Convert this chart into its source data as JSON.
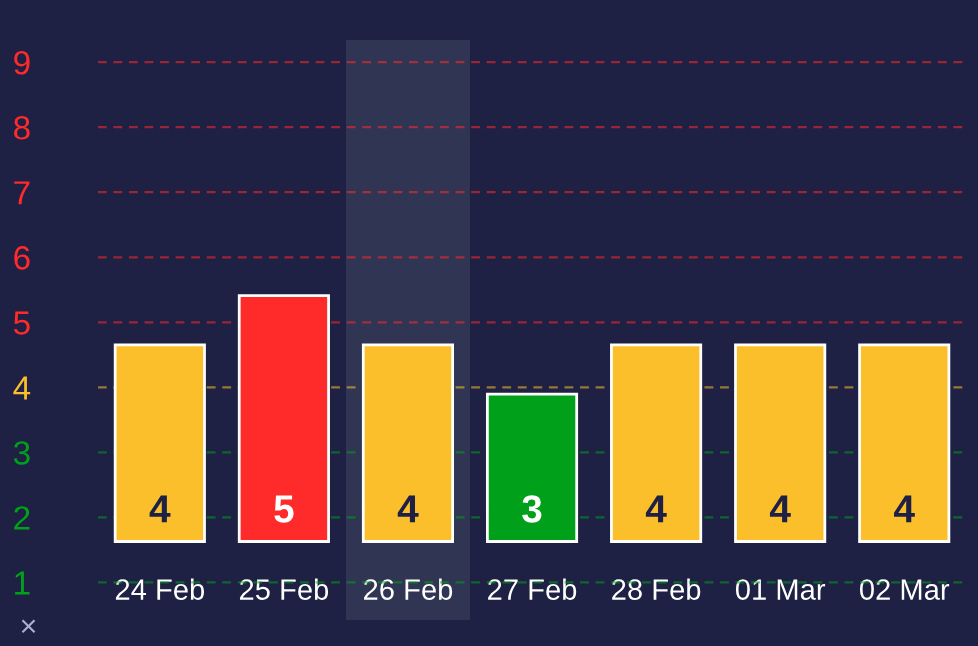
{
  "chart_data": {
    "type": "bar",
    "categories": [
      "24 Feb",
      "25 Feb",
      "26 Feb",
      "27 Feb",
      "28 Feb",
      "01 Mar",
      "02 Mar"
    ],
    "series": [
      {
        "axis": "y2",
        "values": [
          4,
          5,
          4,
          3,
          4,
          4,
          4
        ],
        "colors": [
          "#fbbf2c",
          "#ff2a2a",
          "#fbbf2c",
          "#00a01a",
          "#fbbf2c",
          "#fbbf2c",
          "#fbbf2c"
        ]
      }
    ],
    "data_labels": true,
    "ylim": [
      0.42,
      9.34
    ],
    "yticks": [
      1,
      2,
      3,
      4,
      5,
      6,
      7,
      8,
      9
    ],
    "y2lim": [
      -1.6,
      10.2
    ],
    "tick_labels": "xy",
    "ref_lines": [
      {
        "axis": "y",
        "value": 1,
        "color": "#00a01a",
        "line_style": "dashed"
      },
      {
        "axis": "y",
        "value": 2,
        "color": "#00a01a",
        "line_style": "dashed"
      },
      {
        "axis": "y",
        "value": 3,
        "color": "#00a01a",
        "line_style": "dashed"
      },
      {
        "axis": "y",
        "value": 4,
        "color": "#fbbf2c",
        "line_style": "dashed"
      },
      {
        "axis": "y",
        "value": 5,
        "color": "#ff2a2a",
        "line_style": "dashed"
      },
      {
        "axis": "y",
        "value": 6,
        "color": "#ff2a2a",
        "line_style": "dashed"
      },
      {
        "axis": "y",
        "value": 7,
        "color": "#ff2a2a",
        "line_style": "dashed"
      },
      {
        "axis": "y",
        "value": 8,
        "color": "#ff2a2a",
        "line_style": "dashed"
      },
      {
        "axis": "y",
        "value": 9,
        "color": "#ff2a2a",
        "line_style": "dashed"
      }
    ],
    "bands": [
      {
        "axis": "x",
        "from": "26 Feb",
        "to": "26 Feb",
        "color": "#303553"
      }
    ],
    "annotations": [
      "×"
    ],
    "grid": false,
    "legend": false
  }
}
